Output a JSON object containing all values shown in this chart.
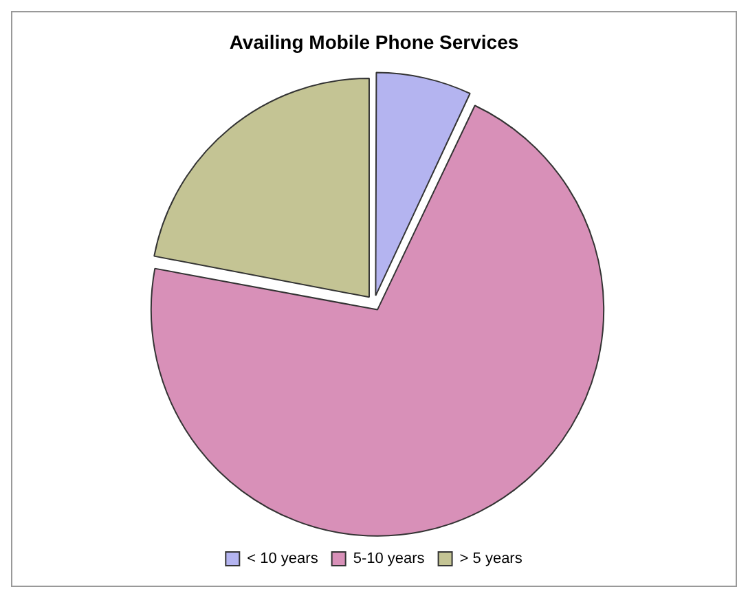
{
  "chart_data": {
    "type": "pie",
    "title": "Availing Mobile Phone Services",
    "categories": [
      "< 10 years",
      "5-10 years",
      "> 5 years"
    ],
    "values": [
      7,
      71,
      22
    ],
    "colors": [
      "#b4b4f0",
      "#d890b8",
      "#c4c494"
    ],
    "legend": "bottom"
  }
}
